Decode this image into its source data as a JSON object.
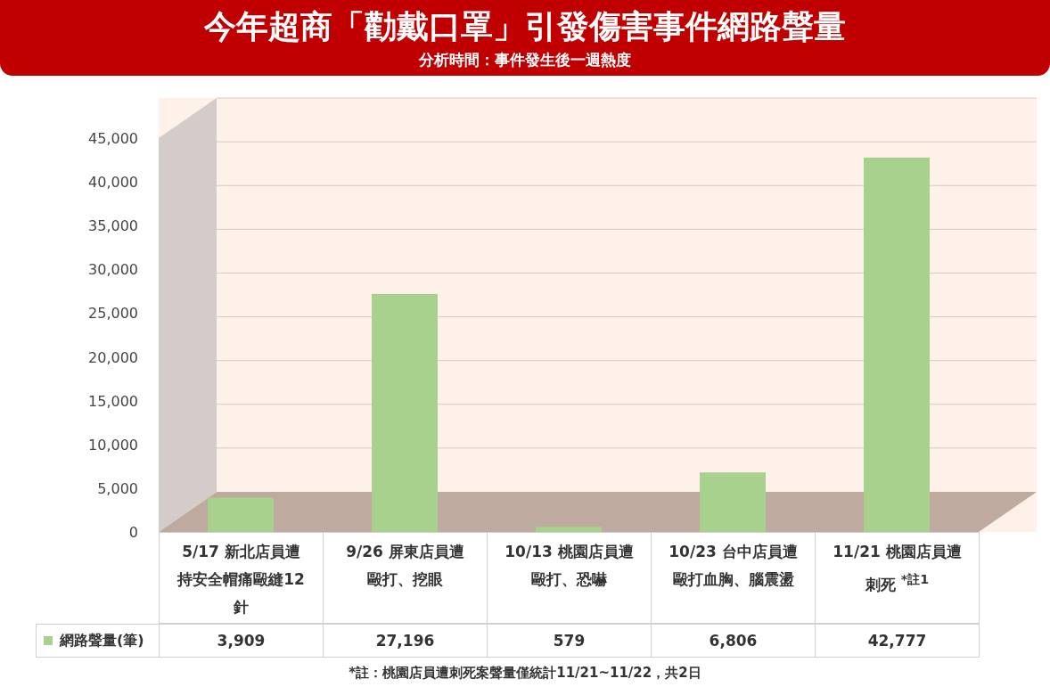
{
  "chart_data": {
    "type": "bar",
    "title": "今年超商「勸戴口罩」引發傷害事件網路聲量",
    "subtitle": "分析時間：事件發生後一週熱度",
    "categories": [
      "5/17 新北店員遭持安全帽痛毆縫12針",
      "9/26 屏東店員遭毆打、挖眼",
      "10/13 桃園店員遭毆打、恐嚇",
      "10/23 台中店員遭毆打血胸、腦震盪",
      "11/21 桃園店員遭刺死 $^{*註1}$"
    ],
    "series": [
      {
        "name": "網路聲量(筆)",
        "color": "#a9d18e",
        "values": [
          3909,
          27196,
          579,
          6806,
          42777
        ],
        "value_labels": [
          "3,909",
          "27,196",
          "579",
          "6,806",
          "42,777"
        ]
      }
    ],
    "ylim": [
      0,
      45000
    ],
    "yticks": [
      {
        "value": 0,
        "label": "0"
      },
      {
        "value": 5000,
        "label": "5,000"
      },
      {
        "value": 10000,
        "label": "10,000"
      },
      {
        "value": 15000,
        "label": "15,000"
      },
      {
        "value": 20000,
        "label": "20,000"
      },
      {
        "value": 25000,
        "label": "25,000"
      },
      {
        "value": 30000,
        "label": "30,000"
      },
      {
        "value": 35000,
        "label": "35,000"
      },
      {
        "value": 40000,
        "label": "40,000"
      },
      {
        "value": 45000,
        "label": "45,000"
      }
    ],
    "grid": "y",
    "legend": "bottom left",
    "annotations": [
      "*註：桃園店員遭刺死案聲量僅統計11/21~11/22，共2日"
    ]
  }
}
